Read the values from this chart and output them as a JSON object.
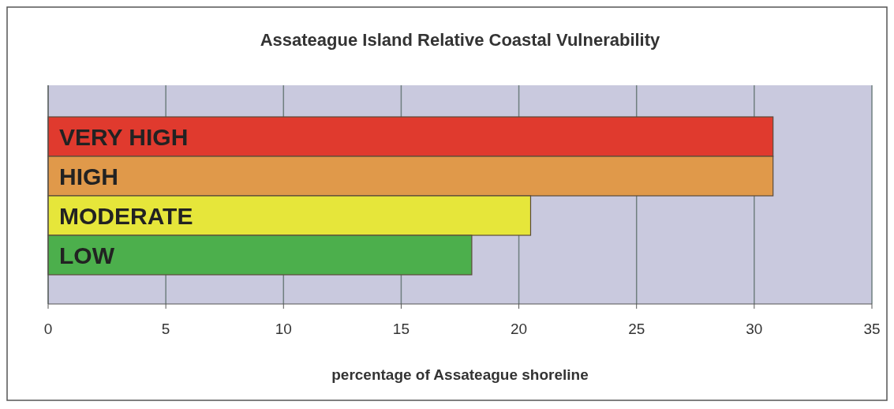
{
  "chart_data": {
    "type": "bar",
    "orientation": "horizontal",
    "title": "Assateague Island Relative Coastal Vulnerability",
    "xlabel": "percentage of Assateague shoreline",
    "categories": [
      "VERY HIGH",
      "HIGH",
      "MODERATE",
      "LOW"
    ],
    "values": [
      30.8,
      30.8,
      20.5,
      18.0
    ],
    "colors": [
      "#e03a2e",
      "#e0994a",
      "#e6e63a",
      "#4caf4c"
    ],
    "xlim": [
      0,
      35
    ],
    "xticks": [
      0,
      5,
      10,
      15,
      20,
      25,
      30,
      35
    ],
    "grid": "x"
  }
}
